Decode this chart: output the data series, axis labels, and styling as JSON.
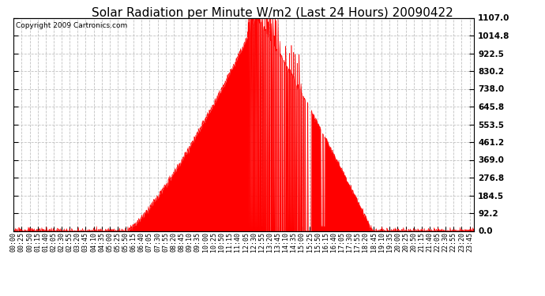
{
  "title": "Solar Radiation per Minute W/m2 (Last 24 Hours) 20090422",
  "copyright": "Copyright 2009 Cartronics.com",
  "ymin": 0.0,
  "ymax": 1107.0,
  "yticks": [
    0.0,
    92.2,
    184.5,
    276.8,
    369.0,
    461.2,
    553.5,
    645.8,
    738.0,
    830.2,
    922.5,
    1014.8,
    1107.0
  ],
  "fill_color": "#ff0000",
  "line_color": "#ff0000",
  "bg_color": "#ffffff",
  "plot_bg_color": "#ffffff",
  "grid_color": "#bbbbbb",
  "dashed_line_color": "#ff0000",
  "title_fontsize": 11,
  "copyright_fontsize": 6.5,
  "tick_fontsize": 6,
  "ytick_fontsize": 7.5,
  "xtick_step_minutes": 25
}
